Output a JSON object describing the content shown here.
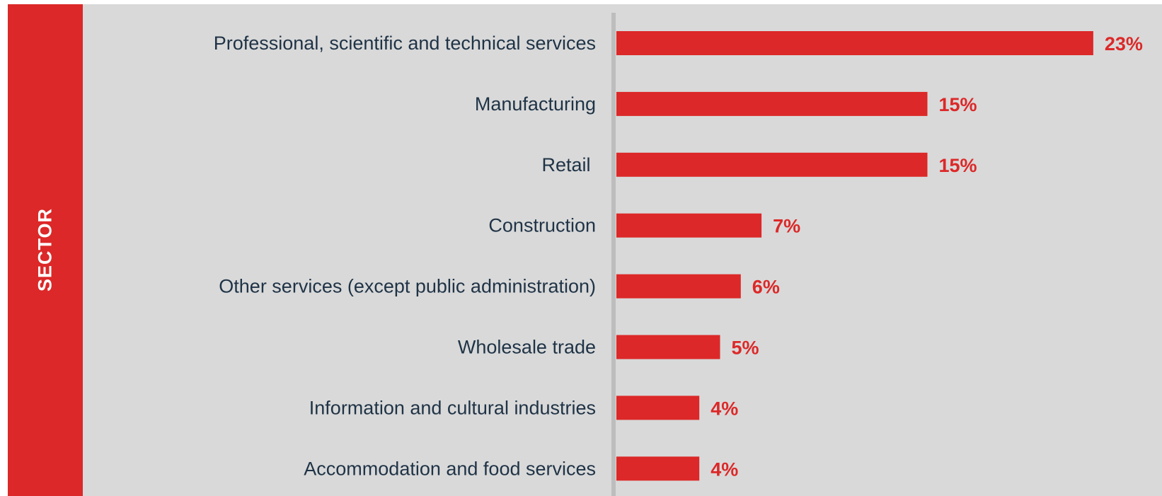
{
  "side_label": "SECTOR",
  "colors": {
    "bar": "#dc2828",
    "value_label": "#dc2828",
    "category_label": "#1f3346",
    "axis": "#bdbdbd",
    "panel": "#d9d9d9"
  },
  "chart_data": {
    "type": "bar",
    "orientation": "horizontal",
    "categories": [
      "Professional, scientific and technical services",
      "Manufacturing",
      "Retail ",
      "Construction",
      "Other services (except public administration)",
      "Wholesale trade",
      "Information and cultural industries",
      "Accommodation and food services"
    ],
    "values": [
      23,
      15,
      15,
      7,
      6,
      5,
      4,
      4
    ],
    "value_labels": [
      "23%",
      "15%",
      "15%",
      "7%",
      "6%",
      "5%",
      "4%",
      "4%"
    ],
    "unit": "%",
    "title": "",
    "xlabel": "",
    "ylabel": "SECTOR",
    "grid": false,
    "legend": "none"
  }
}
